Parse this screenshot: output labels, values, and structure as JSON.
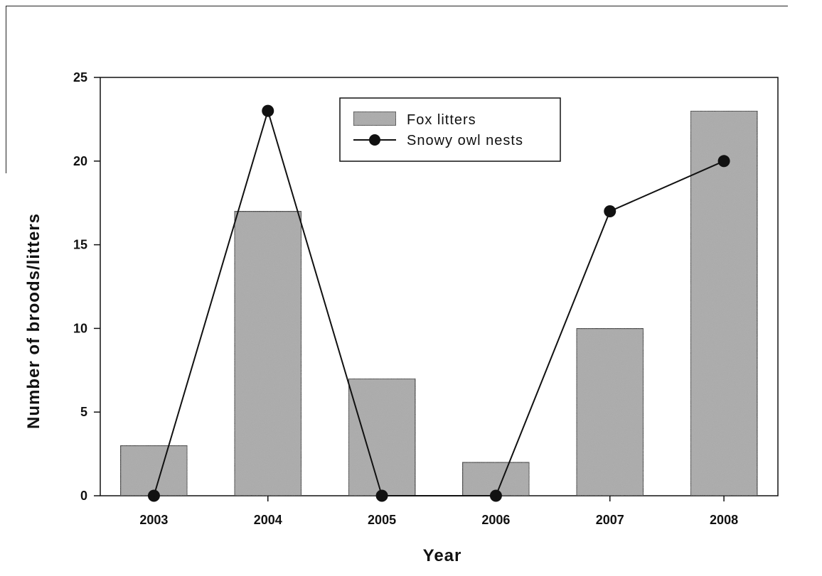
{
  "chart_data": {
    "type": "bar",
    "title": "",
    "xlabel": "Year",
    "ylabel": "Number of broods/litters",
    "categories": [
      "2003",
      "2004",
      "2005",
      "2006",
      "2007",
      "2008"
    ],
    "ylim": [
      0,
      25
    ],
    "yticks": [
      "0",
      "5",
      "10",
      "15",
      "20",
      "25"
    ],
    "grid": false,
    "legend_position": "top-center",
    "series": [
      {
        "name": "Fox litters",
        "kind": "bar",
        "values": [
          3,
          17,
          7,
          2,
          10,
          23
        ],
        "color": "#a9a9a9"
      },
      {
        "name": "Snowy owl nests",
        "kind": "line",
        "values": [
          0,
          23,
          0,
          0,
          17,
          20
        ],
        "color": "#111111"
      }
    ]
  }
}
